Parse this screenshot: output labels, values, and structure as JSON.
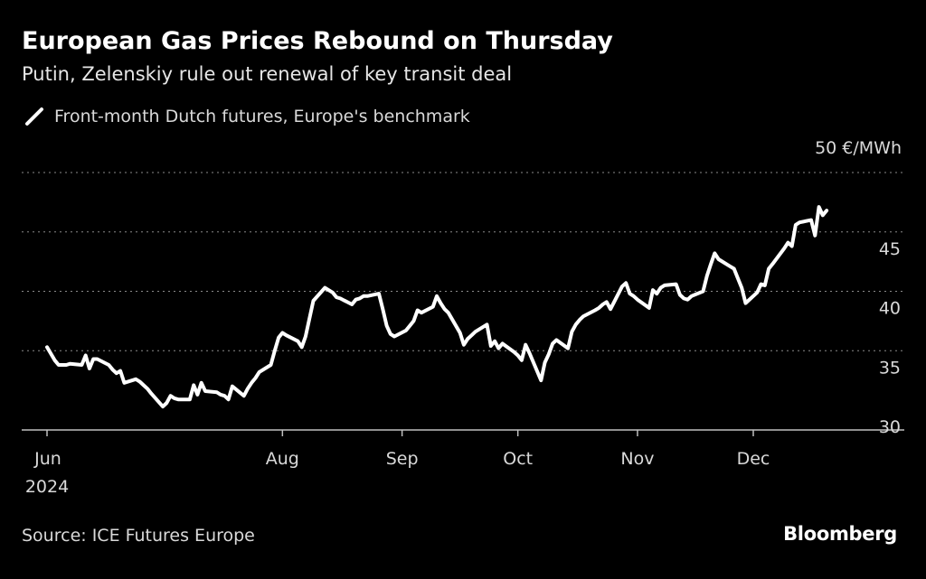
{
  "header": {
    "title": "European Gas Prices Rebound on Thursday",
    "subtitle": "Putin, Zelenskiy rule out renewal of key transit deal"
  },
  "footer": {
    "source": "Source: ICE Futures Europe",
    "brand": "Bloomberg"
  },
  "chart_data": {
    "type": "line",
    "title": "European Gas Prices Rebound on Thursday",
    "subtitle": "Putin, Zelenskiy rule out renewal of key transit deal",
    "unit_label": "50 €/MWh",
    "ylim": [
      28,
      52
    ],
    "y_ticks": [
      {
        "value": 50,
        "label": "50 €/MWh"
      },
      {
        "value": 45,
        "label": "45"
      },
      {
        "value": 40,
        "label": "40"
      },
      {
        "value": 35,
        "label": "35"
      },
      {
        "value": 30,
        "label": "30"
      }
    ],
    "xlim": [
      "2024-06-01",
      "2024-12-31"
    ],
    "x_ticks": [
      {
        "date": "2024-06-01",
        "label": "Jun",
        "sublabel": "2024"
      },
      {
        "date": "2024-08-01",
        "label": "Aug"
      },
      {
        "date": "2024-09-01",
        "label": "Sep"
      },
      {
        "date": "2024-10-01",
        "label": "Oct"
      },
      {
        "date": "2024-11-01",
        "label": "Nov"
      },
      {
        "date": "2024-12-01",
        "label": "Dec"
      }
    ],
    "grid": "horizontal dotted",
    "legend_position": "top-left",
    "series": [
      {
        "name": "Front-month Dutch futures, Europe's benchmark",
        "color": "#ffffff",
        "points": [
          [
            "2024-06-01",
            35.3
          ],
          [
            "2024-06-03",
            34.2
          ],
          [
            "2024-06-04",
            33.8
          ],
          [
            "2024-06-06",
            33.8
          ],
          [
            "2024-06-07",
            33.9
          ],
          [
            "2024-06-10",
            33.8
          ],
          [
            "2024-06-11",
            34.6
          ],
          [
            "2024-06-12",
            33.5
          ],
          [
            "2024-06-13",
            34.3
          ],
          [
            "2024-06-14",
            34.3
          ],
          [
            "2024-06-17",
            33.8
          ],
          [
            "2024-06-18",
            33.4
          ],
          [
            "2024-06-19",
            33.1
          ],
          [
            "2024-06-20",
            33.3
          ],
          [
            "2024-06-21",
            32.3
          ],
          [
            "2024-06-24",
            32.6
          ],
          [
            "2024-06-25",
            32.4
          ],
          [
            "2024-06-26",
            32.1
          ],
          [
            "2024-06-27",
            31.8
          ],
          [
            "2024-06-28",
            31.4
          ],
          [
            "2024-07-01",
            30.3
          ],
          [
            "2024-07-02",
            30.6
          ],
          [
            "2024-07-03",
            31.2
          ],
          [
            "2024-07-04",
            31.0
          ],
          [
            "2024-07-05",
            30.9
          ],
          [
            "2024-07-08",
            30.9
          ],
          [
            "2024-07-09",
            32.1
          ],
          [
            "2024-07-10",
            31.3
          ],
          [
            "2024-07-11",
            32.3
          ],
          [
            "2024-07-12",
            31.6
          ],
          [
            "2024-07-15",
            31.5
          ],
          [
            "2024-07-16",
            31.3
          ],
          [
            "2024-07-17",
            31.2
          ],
          [
            "2024-07-18",
            30.9
          ],
          [
            "2024-07-19",
            32.0
          ],
          [
            "2024-07-22",
            31.2
          ],
          [
            "2024-07-23",
            31.8
          ],
          [
            "2024-07-24",
            32.3
          ],
          [
            "2024-07-25",
            32.7
          ],
          [
            "2024-07-26",
            33.2
          ],
          [
            "2024-07-29",
            33.8
          ],
          [
            "2024-07-30",
            35.0
          ],
          [
            "2024-07-31",
            36.1
          ],
          [
            "2024-08-01",
            36.5
          ],
          [
            "2024-08-02",
            36.3
          ],
          [
            "2024-08-05",
            35.8
          ],
          [
            "2024-08-06",
            35.3
          ],
          [
            "2024-08-07",
            36.2
          ],
          [
            "2024-08-08",
            37.7
          ],
          [
            "2024-08-09",
            39.2
          ],
          [
            "2024-08-12",
            40.3
          ],
          [
            "2024-08-13",
            40.1
          ],
          [
            "2024-08-14",
            39.9
          ],
          [
            "2024-08-15",
            39.5
          ],
          [
            "2024-08-16",
            39.4
          ],
          [
            "2024-08-19",
            38.9
          ],
          [
            "2024-08-20",
            39.3
          ],
          [
            "2024-08-21",
            39.4
          ],
          [
            "2024-08-22",
            39.6
          ],
          [
            "2024-08-23",
            39.6
          ],
          [
            "2024-08-26",
            39.8
          ],
          [
            "2024-08-27",
            38.5
          ],
          [
            "2024-08-28",
            37.1
          ],
          [
            "2024-08-29",
            36.4
          ],
          [
            "2024-08-30",
            36.2
          ],
          [
            "2024-09-02",
            36.7
          ],
          [
            "2024-09-03",
            37.1
          ],
          [
            "2024-09-04",
            37.5
          ],
          [
            "2024-09-05",
            38.4
          ],
          [
            "2024-09-06",
            38.2
          ],
          [
            "2024-09-09",
            38.7
          ],
          [
            "2024-09-10",
            39.6
          ],
          [
            "2024-09-11",
            39.0
          ],
          [
            "2024-09-12",
            38.5
          ],
          [
            "2024-09-13",
            38.2
          ],
          [
            "2024-09-16",
            36.5
          ],
          [
            "2024-09-17",
            35.5
          ],
          [
            "2024-09-18",
            36.0
          ],
          [
            "2024-09-19",
            36.3
          ],
          [
            "2024-09-20",
            36.6
          ],
          [
            "2024-09-23",
            37.2
          ],
          [
            "2024-09-24",
            35.4
          ],
          [
            "2024-09-25",
            35.8
          ],
          [
            "2024-09-26",
            35.2
          ],
          [
            "2024-09-27",
            35.6
          ],
          [
            "2024-09-30",
            34.9
          ],
          [
            "2024-10-01",
            34.6
          ],
          [
            "2024-10-02",
            34.2
          ],
          [
            "2024-10-03",
            35.5
          ],
          [
            "2024-10-04",
            34.8
          ],
          [
            "2024-10-07",
            32.5
          ],
          [
            "2024-10-08",
            34.0
          ],
          [
            "2024-10-09",
            34.7
          ],
          [
            "2024-10-10",
            35.6
          ],
          [
            "2024-10-11",
            35.9
          ],
          [
            "2024-10-14",
            35.2
          ],
          [
            "2024-10-15",
            36.6
          ],
          [
            "2024-10-16",
            37.2
          ],
          [
            "2024-10-17",
            37.6
          ],
          [
            "2024-10-18",
            37.9
          ],
          [
            "2024-10-21",
            38.4
          ],
          [
            "2024-10-22",
            38.6
          ],
          [
            "2024-10-23",
            38.9
          ],
          [
            "2024-10-24",
            39.1
          ],
          [
            "2024-10-25",
            38.5
          ],
          [
            "2024-10-28",
            40.4
          ],
          [
            "2024-10-29",
            40.7
          ],
          [
            "2024-10-30",
            39.8
          ],
          [
            "2024-10-31",
            39.6
          ],
          [
            "2024-11-01",
            39.3
          ],
          [
            "2024-11-04",
            38.6
          ],
          [
            "2024-11-05",
            40.1
          ],
          [
            "2024-11-06",
            39.8
          ],
          [
            "2024-11-07",
            40.3
          ],
          [
            "2024-11-08",
            40.5
          ],
          [
            "2024-11-11",
            40.6
          ],
          [
            "2024-11-12",
            39.7
          ],
          [
            "2024-11-13",
            39.4
          ],
          [
            "2024-11-14",
            39.3
          ],
          [
            "2024-11-15",
            39.6
          ],
          [
            "2024-11-18",
            40.0
          ],
          [
            "2024-11-19",
            41.3
          ],
          [
            "2024-11-20",
            42.3
          ],
          [
            "2024-11-21",
            43.2
          ],
          [
            "2024-11-22",
            42.7
          ],
          [
            "2024-11-25",
            42.1
          ],
          [
            "2024-11-26",
            41.9
          ],
          [
            "2024-11-27",
            41.1
          ],
          [
            "2024-11-28",
            40.3
          ],
          [
            "2024-11-29",
            39.0
          ],
          [
            "2024-12-02",
            39.9
          ],
          [
            "2024-12-03",
            40.6
          ],
          [
            "2024-12-04",
            40.5
          ],
          [
            "2024-12-05",
            41.9
          ],
          [
            "2024-12-06",
            42.3
          ],
          [
            "2024-12-09",
            43.6
          ],
          [
            "2024-12-10",
            44.1
          ],
          [
            "2024-12-11",
            43.8
          ],
          [
            "2024-12-12",
            45.6
          ],
          [
            "2024-12-13",
            45.8
          ],
          [
            "2024-12-16",
            46.0
          ],
          [
            "2024-12-17",
            44.7
          ],
          [
            "2024-12-18",
            47.1
          ],
          [
            "2024-12-19",
            46.4
          ],
          [
            "2024-12-20",
            46.8
          ]
        ]
      }
    ]
  }
}
